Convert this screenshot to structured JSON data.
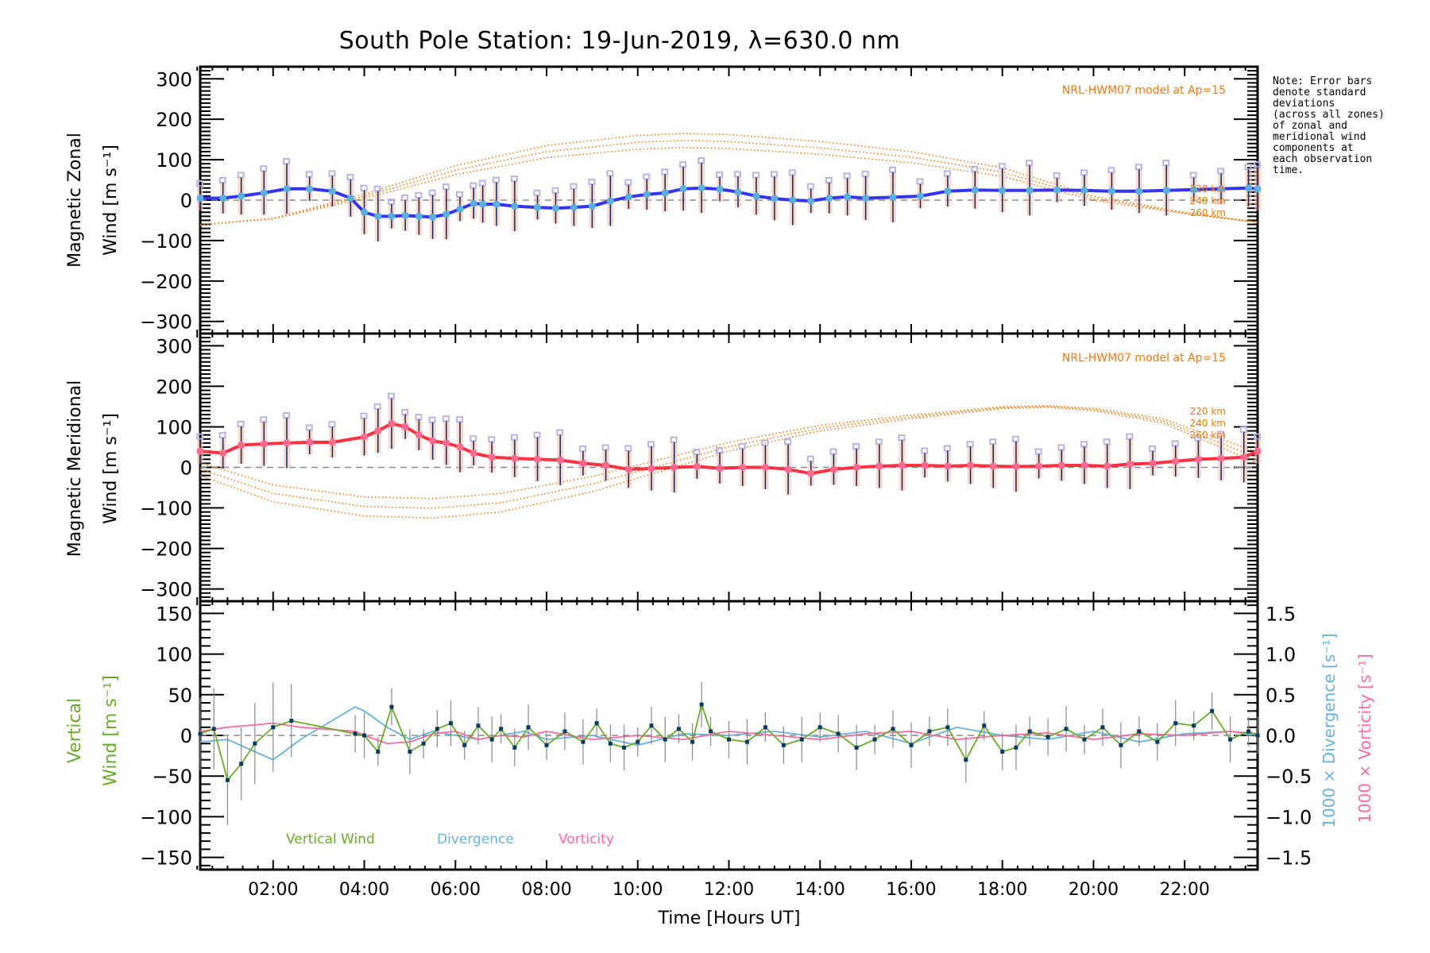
{
  "title": "South Pole Station: 19-Jun-2019, λ=630.0 nm",
  "note": "Note: Error bars\ndenote standard\ndeviations\n(across all zones)\nof zonal and\nmeridional wind\ncomponents at\neach observation\ntime.",
  "colors": {
    "zonal_line": "#3535f0",
    "zonal_points": "#5ab0dc",
    "meridional_line": "#ff3040",
    "meridional_points": "#ff6a90",
    "model": "#f07a10",
    "vertical": "#6aaa2a",
    "divergence": "#66b2dd",
    "vorticity": "#ff6a9a",
    "zone_box": "#b8b4e0",
    "errbar": "#0a2a50",
    "vert_points": "#0a3a60"
  },
  "chart_data": [
    {
      "type": "line",
      "panel": "zonal",
      "ylabel_line1": "Magnetic Zonal",
      "ylabel_line2": "Wind [m s⁻¹]",
      "ylim": [
        -330,
        330
      ],
      "yticks": [
        300,
        200,
        100,
        0,
        -100,
        -200,
        -300
      ],
      "xlim": [
        0.4,
        23.6
      ],
      "model_label": "NRL-HWM07 model at Ap=15",
      "model_altitudes": [
        "220 km",
        "240 km",
        "260 km"
      ],
      "series": [
        {
          "name": "Zonal wind",
          "x": [
            0.4,
            0.9,
            1.3,
            1.8,
            2.3,
            2.8,
            3.3,
            3.7,
            4.0,
            4.3,
            4.6,
            4.9,
            5.2,
            5.5,
            5.8,
            6.1,
            6.4,
            6.6,
            6.9,
            7.3,
            7.8,
            8.2,
            8.6,
            9.0,
            9.4,
            9.8,
            10.2,
            10.6,
            11.0,
            11.4,
            11.8,
            12.2,
            12.6,
            13.0,
            13.4,
            13.8,
            14.2,
            14.6,
            15.0,
            15.6,
            16.2,
            16.8,
            17.4,
            18.0,
            18.6,
            19.2,
            19.8,
            20.4,
            21.0,
            21.6,
            22.2,
            22.8,
            23.4,
            23.6
          ],
          "y": [
            5,
            5,
            10,
            18,
            28,
            28,
            22,
            5,
            -30,
            -40,
            -40,
            -38,
            -40,
            -42,
            -35,
            -22,
            -8,
            -10,
            -10,
            -15,
            -18,
            -20,
            -18,
            -15,
            -2,
            8,
            14,
            18,
            28,
            30,
            27,
            20,
            10,
            4,
            0,
            -2,
            5,
            8,
            5,
            7,
            10,
            22,
            25,
            24,
            24,
            25,
            24,
            22,
            22,
            24,
            26,
            28,
            30,
            28
          ]
        },
        {
          "name": "Model 220 km",
          "x": [
            0.4,
            2,
            4,
            6,
            8,
            10,
            11,
            12,
            14,
            16,
            18,
            20,
            22,
            23.6
          ],
          "y": [
            -62,
            -45,
            15,
            85,
            135,
            160,
            165,
            162,
            145,
            120,
            80,
            10,
            -30,
            -55
          ]
        }
      ]
    },
    {
      "type": "line",
      "panel": "meridional",
      "ylabel_line1": "Magnetic Meridional",
      "ylabel_line2": "Wind [m s⁻¹]",
      "ylim": [
        -330,
        330
      ],
      "yticks": [
        300,
        200,
        100,
        0,
        -100,
        -200,
        -300
      ],
      "xlim": [
        0.4,
        23.6
      ],
      "model_label": "NRL-HWM07 model at Ap=15",
      "model_altitudes": [
        "220 km",
        "240 km",
        "260 km"
      ],
      "series": [
        {
          "name": "Meridional wind",
          "x": [
            0.4,
            0.9,
            1.3,
            1.8,
            2.3,
            2.8,
            3.3,
            4.0,
            4.3,
            4.6,
            4.9,
            5.2,
            5.5,
            5.8,
            6.1,
            6.4,
            6.8,
            7.3,
            7.8,
            8.3,
            8.8,
            9.3,
            9.8,
            10.3,
            10.8,
            11.3,
            11.8,
            12.3,
            12.8,
            13.3,
            13.8,
            14.3,
            14.8,
            15.3,
            15.8,
            16.3,
            16.8,
            17.3,
            17.8,
            18.3,
            18.8,
            19.3,
            19.8,
            20.3,
            20.8,
            21.3,
            21.8,
            22.3,
            22.8,
            23.3,
            23.6
          ],
          "y": [
            40,
            35,
            55,
            58,
            60,
            62,
            62,
            75,
            90,
            108,
            100,
            80,
            65,
            60,
            50,
            35,
            25,
            22,
            20,
            18,
            10,
            5,
            -5,
            -3,
            0,
            2,
            -2,
            0,
            0,
            -5,
            -15,
            -5,
            0,
            3,
            5,
            5,
            3,
            5,
            3,
            2,
            3,
            5,
            5,
            3,
            8,
            10,
            15,
            20,
            22,
            25,
            40
          ]
        },
        {
          "name": "Model 240 km",
          "x": [
            0.4,
            2,
            4,
            5.5,
            7,
            9,
            10.5,
            12,
            14,
            16,
            18,
            19,
            20,
            21.5,
            23,
            23.6
          ],
          "y": [
            -20,
            -85,
            -120,
            -125,
            -110,
            -60,
            -10,
            40,
            90,
            120,
            145,
            148,
            140,
            110,
            40,
            10
          ]
        }
      ]
    },
    {
      "type": "line",
      "panel": "vertical",
      "ylabel_line1": "Vertical",
      "ylabel_line2": "Wind [m s⁻¹]",
      "ylim": [
        -165,
        165
      ],
      "yticks": [
        150,
        100,
        50,
        0,
        -50,
        -100,
        -150
      ],
      "y2label_divergence": "1000 × Divergence [s⁻¹]",
      "y2label_vorticity": "1000 × Vorticity [s⁻¹]",
      "y2lim": [
        -1.65,
        1.65
      ],
      "y2ticks": [
        "1.5",
        "1.0",
        "0.5",
        "0.0",
        "−0.5",
        "−1.0",
        "−1.5"
      ],
      "xlabel": "Time [Hours UT]",
      "xticks": [
        "02:00",
        "04:00",
        "06:00",
        "08:00",
        "10:00",
        "12:00",
        "14:00",
        "16:00",
        "18:00",
        "20:00",
        "22:00"
      ],
      "xtick_values": [
        2,
        4,
        6,
        8,
        10,
        12,
        14,
        16,
        18,
        20,
        22
      ],
      "xlim": [
        0.4,
        23.6
      ],
      "legend": [
        "Vertical Wind",
        "Divergence",
        "Vorticity"
      ],
      "legend_position": "bottom-left",
      "series": [
        {
          "name": "Vertical Wind",
          "x": [
            0.4,
            0.7,
            1.0,
            1.3,
            1.6,
            2.0,
            2.4,
            3.8,
            4.0,
            4.3,
            4.6,
            5.0,
            5.3,
            5.6,
            5.9,
            6.2,
            6.5,
            6.8,
            7.0,
            7.3,
            7.6,
            8.0,
            8.4,
            8.8,
            9.1,
            9.4,
            9.7,
            10.0,
            10.3,
            10.6,
            10.9,
            11.2,
            11.4,
            11.6,
            12.0,
            12.4,
            12.8,
            13.2,
            13.6,
            14.0,
            14.4,
            14.8,
            15.2,
            15.6,
            16.0,
            16.4,
            16.8,
            17.2,
            17.6,
            18.0,
            18.3,
            18.6,
            19.0,
            19.4,
            19.8,
            20.2,
            20.6,
            21.0,
            21.4,
            21.8,
            22.2,
            22.6,
            23.0,
            23.4,
            23.6
          ],
          "y": [
            2,
            8,
            -55,
            -35,
            -10,
            10,
            18,
            2,
            0,
            -20,
            35,
            -20,
            -10,
            8,
            15,
            -12,
            12,
            -5,
            8,
            -15,
            10,
            -12,
            5,
            -8,
            15,
            -10,
            -15,
            -8,
            12,
            -5,
            8,
            -8,
            38,
            5,
            -5,
            -8,
            10,
            -12,
            -5,
            10,
            2,
            -15,
            -5,
            8,
            -12,
            5,
            10,
            -30,
            12,
            -20,
            -15,
            5,
            -2,
            8,
            -5,
            10,
            -12,
            5,
            -8,
            15,
            12,
            30,
            -5,
            5,
            0
          ]
        },
        {
          "name": "Divergence",
          "x": [
            0.4,
            1.0,
            2.0,
            2.6,
            3.8,
            4.0,
            4.5,
            5.0,
            5.5,
            6.0,
            6.5,
            7.0,
            7.5,
            8.0,
            9.0,
            10.0,
            11.0,
            12.0,
            13.0,
            14.0,
            15.0,
            16.0,
            17.0,
            18.0,
            19.0,
            20.0,
            21.0,
            22.0,
            23.0,
            23.6
          ],
          "y": [
            -0.08,
            -0.05,
            -0.3,
            -0.05,
            0.35,
            0.3,
            0.1,
            -0.05,
            0.05,
            0.0,
            -0.05,
            0.0,
            0.05,
            -0.05,
            0.0,
            -0.12,
            0.02,
            0.0,
            0.05,
            -0.02,
            0.05,
            -0.1,
            0.1,
            0.0,
            -0.05,
            0.05,
            -0.08,
            0.02,
            0.05,
            0.0
          ]
        },
        {
          "name": "Vorticity",
          "x": [
            0.4,
            1.0,
            2.0,
            2.6,
            3.8,
            4.0,
            4.5,
            5.0,
            5.5,
            6.0,
            6.5,
            7.0,
            7.5,
            8.0,
            9.0,
            10.0,
            11.0,
            12.0,
            13.0,
            14.0,
            15.0,
            16.0,
            17.0,
            18.0,
            19.0,
            20.0,
            21.0,
            22.0,
            23.0,
            23.6
          ],
          "y": [
            0.05,
            0.1,
            0.15,
            0.1,
            0.05,
            0.0,
            -0.1,
            -0.08,
            0.02,
            0.05,
            -0.05,
            0.0,
            -0.02,
            0.05,
            -0.05,
            0.0,
            -0.05,
            0.05,
            0.0,
            -0.05,
            0.02,
            0.05,
            -0.05,
            0.0,
            0.03,
            -0.05,
            0.02,
            0.0,
            0.05,
            0.02
          ]
        }
      ]
    }
  ]
}
